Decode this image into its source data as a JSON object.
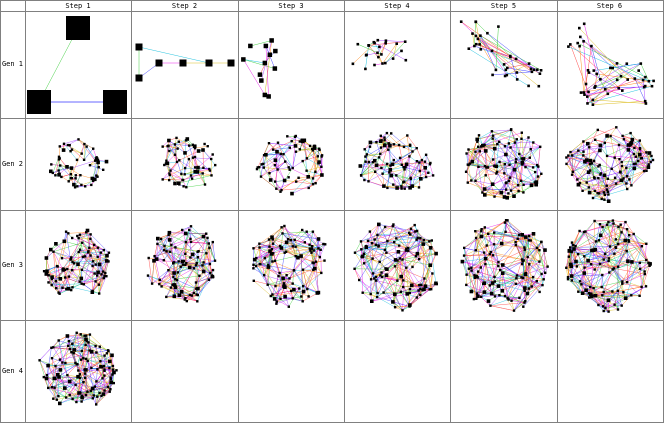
{
  "columns": [
    "Step 1",
    "Step 2",
    "Step 3",
    "Step 4",
    "Step 5",
    "Step 6"
  ],
  "rows": [
    "Gen 1",
    "Gen 2",
    "Gen 3",
    "Gen 4"
  ],
  "cells": [
    [
      {
        "nodes": 3,
        "edges": 3
      },
      {
        "nodes": 6,
        "edges": 6
      },
      {
        "nodes": 12,
        "edges": 12
      },
      {
        "nodes": 24,
        "edges": 24
      },
      {
        "nodes": 36,
        "edges": 38
      },
      {
        "nodes": 48,
        "edges": 55
      }
    ],
    [
      {
        "nodes": 55,
        "edges": 110
      },
      {
        "nodes": 60,
        "edges": 140
      },
      {
        "nodes": 70,
        "edges": 180
      },
      {
        "nodes": 85,
        "edges": 240
      },
      {
        "nodes": 100,
        "edges": 330
      },
      {
        "nodes": 110,
        "edges": 360
      }
    ],
    [
      {
        "nodes": 90,
        "edges": 330
      },
      {
        "nodes": 95,
        "edges": 350
      },
      {
        "nodes": 100,
        "edges": 380
      },
      {
        "nodes": 110,
        "edges": 420
      },
      {
        "nodes": 115,
        "edges": 440
      },
      {
        "nodes": 120,
        "edges": 460
      }
    ],
    [
      {
        "nodes": 120,
        "edges": 470
      },
      null,
      null,
      null,
      null,
      null
    ]
  ],
  "colors": {
    "grid": "#808080",
    "node": "#000000",
    "edge_palette": [
      "#ff2a2a",
      "#26c826",
      "#2a2aff",
      "#e600e6",
      "#00b8d9",
      "#d7b400",
      "#ff7a00",
      "#9b30ff"
    ]
  }
}
